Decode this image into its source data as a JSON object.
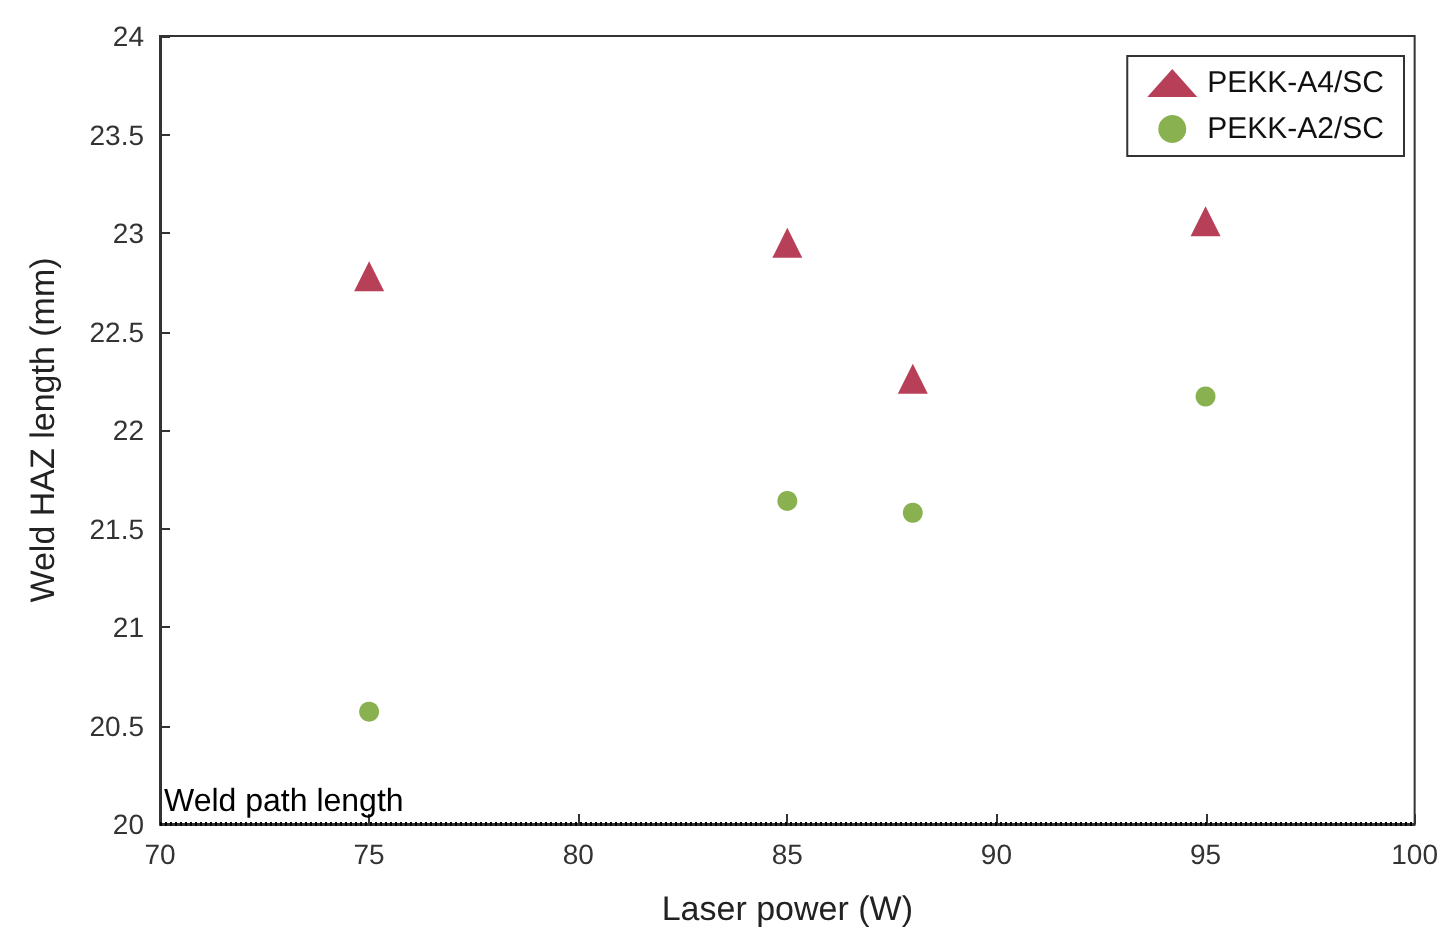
{
  "chart_data": {
    "type": "scatter",
    "xlabel": "Laser power (W)",
    "ylabel": "Weld HAZ length (mm)",
    "xlim": [
      70,
      100
    ],
    "xticks": [
      70,
      75,
      80,
      85,
      90,
      95,
      100
    ],
    "ylim": [
      20,
      24
    ],
    "yticks": [
      20,
      20.5,
      21,
      21.5,
      22,
      22.5,
      23,
      23.5,
      24
    ],
    "x": [
      75,
      85,
      88,
      95
    ],
    "series": [
      {
        "name": "PEKK-A4/SC",
        "color": "#a50f2d",
        "marker": "triangle",
        "values": [
          22.78,
          22.95,
          22.26,
          23.06
        ]
      },
      {
        "name": "PEKK-A2/SC",
        "color": "#6b9e23",
        "marker": "circle",
        "values": [
          20.57,
          21.64,
          21.58,
          22.17
        ]
      }
    ],
    "ref_lines": [
      {
        "axis": "y",
        "value": 20,
        "label": "Weld path length",
        "color": "#000000",
        "line_style": "dotted"
      }
    ],
    "grid": false,
    "legend": "top right"
  }
}
